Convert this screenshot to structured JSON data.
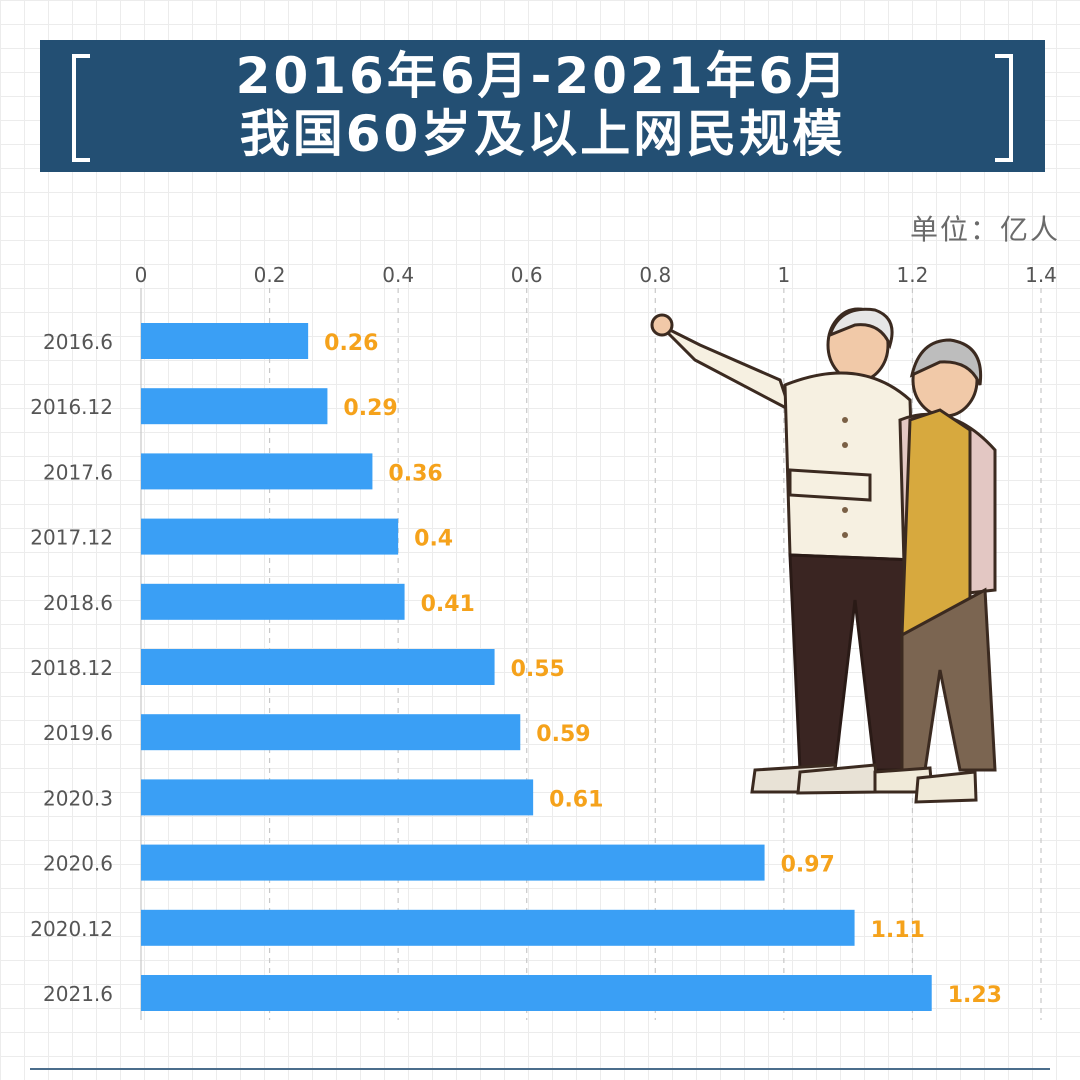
{
  "title": {
    "line1": "2016年6月-2021年6月",
    "line2": "我国60岁及以上网民规模"
  },
  "unit_label": "单位：亿人",
  "colors": {
    "banner": "#234f73",
    "bar": "#3a9ff5",
    "value_label": "#f5a21b",
    "tick_text": "#555555",
    "grid": "#c8c8c8"
  },
  "chart_data": {
    "type": "bar",
    "orientation": "horizontal",
    "categories": [
      "2016.6",
      "2016.12",
      "2017.6",
      "2017.12",
      "2018.6",
      "2018.12",
      "2019.6",
      "2020.3",
      "2020.6",
      "2020.12",
      "2021.6"
    ],
    "values": [
      0.26,
      0.29,
      0.36,
      0.4,
      0.41,
      0.55,
      0.59,
      0.61,
      0.97,
      1.11,
      1.23
    ],
    "value_labels": [
      "0.26",
      "0.29",
      "0.36",
      "0.4",
      "0.41",
      "0.55",
      "0.59",
      "0.61",
      "0.97",
      "1.11",
      "1.23"
    ],
    "x_ticks": [
      "0",
      "0.2",
      "0.4",
      "0.6",
      "0.8",
      "1",
      "1.2",
      "1.4"
    ],
    "xlim": [
      0,
      1.4
    ],
    "x_axis_position": "top",
    "grid": "vertical dashed",
    "legend": "none"
  },
  "illustration": {
    "icon": "elderly-couple-illustration"
  }
}
